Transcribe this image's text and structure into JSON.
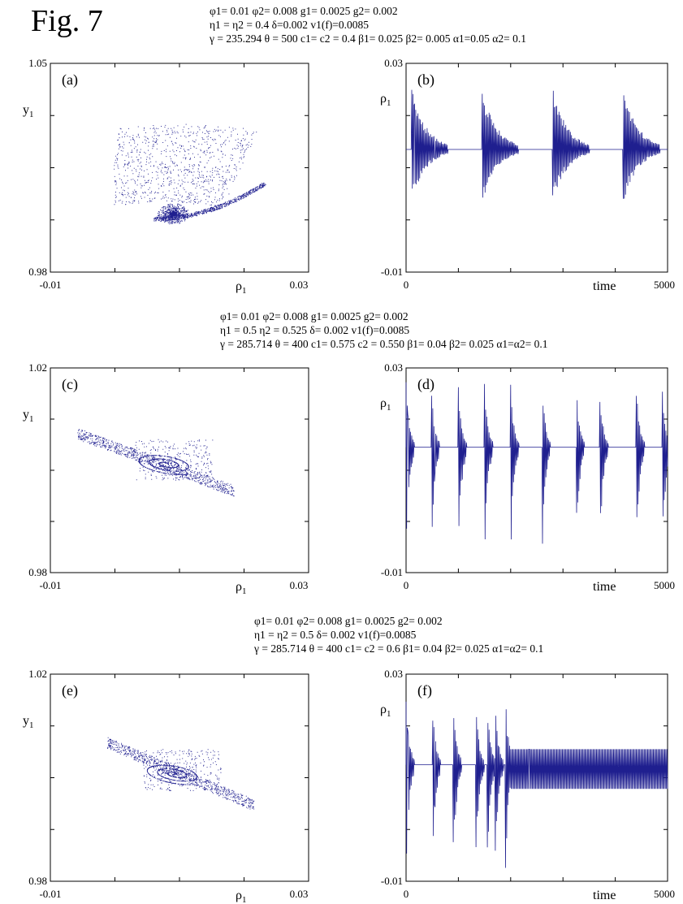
{
  "figure_label": "Fig. 7",
  "param_blocks": [
    [
      "φ1= 0.01   φ2= 0.008   g1= 0.0025   g2= 0.002",
      "η1 = η2 = 0.4   δ=0.002   v1(f)=0.0085",
      "γ = 235.294   θ = 500   c1= c2 = 0.4   β1= 0.025   β2= 0.005   α1=0.05  α2= 0.1"
    ],
    [
      "φ1= 0.01   φ2= 0.008   g1= 0.0025   g2= 0.002",
      "η1 = 0.5   η2 = 0.525   δ= 0.002   v1(f)=0.0085",
      "γ = 285.714   θ = 400   c1= 0.575   c2 = 0.550   β1= 0.04   β2= 0.025   α1=α2= 0.1"
    ],
    [
      "φ1= 0.01   φ2= 0.008   g1= 0.0025   g2= 0.002",
      "η1 = η2 = 0.5   δ= 0.002   v1(f)=0.0085",
      "γ = 285.714   θ = 400   c1= c2 = 0.6   β1= 0.04   β2= 0.025   α1=α2= 0.1"
    ]
  ],
  "colors": {
    "data": "#1f1f8f",
    "axis": "#000000"
  },
  "chart_data": [
    {
      "panel": "(a)",
      "type": "scatter",
      "xlabel": "ρ1",
      "ylabel": "y1",
      "xlim": [
        -0.01,
        0.03
      ],
      "ylim": [
        0.98,
        1.05
      ],
      "x_ticks": [
        "-0.01",
        "0.03"
      ],
      "y_ticks": [
        "0.98",
        "1.05"
      ],
      "attractor": {
        "shape": "bounded_region",
        "center": [
          0.009,
          0.9995
        ],
        "top": 1.03,
        "bottom": 0.997,
        "left": -0.0012,
        "right": 0.0233
      }
    },
    {
      "panel": "(b)",
      "type": "line",
      "xlabel": "time",
      "ylabel": "ρ1",
      "xlim": [
        0,
        5000
      ],
      "ylim": [
        -0.01,
        0.03
      ],
      "x_ticks": [
        "0",
        "5000"
      ],
      "y_ticks": [
        "-0.01",
        "0.03"
      ],
      "baseline": 0.0135,
      "bursts_start": [
        100,
        1450,
        2800,
        4150
      ],
      "burst_duration": 700,
      "peak_max": 0.0255,
      "trough_min": 0.003
    },
    {
      "panel": "(c)",
      "type": "scatter",
      "xlabel": "ρ1",
      "ylabel": "y1",
      "xlim": [
        -0.01,
        0.03
      ],
      "ylim": [
        0.98,
        1.02
      ],
      "x_ticks": [
        "-0.01",
        "0.03"
      ],
      "y_ticks": [
        "0.98",
        "1.02"
      ],
      "attractor": {
        "shape": "spiral_web",
        "center": [
          0.0079,
          1.0012
        ],
        "x_range": [
          -0.0058,
          0.0185
        ],
        "y_range": [
          0.9954,
          1.0086
        ]
      }
    },
    {
      "panel": "(d)",
      "type": "line",
      "xlabel": "time",
      "ylabel": "ρ1",
      "xlim": [
        0,
        5000
      ],
      "ylim": [
        -0.01,
        0.03
      ],
      "x_ticks": [
        "0",
        "5000"
      ],
      "y_ticks": [
        "-0.01",
        "0.03"
      ],
      "baseline": 0.0145,
      "bursts_start": [
        0,
        480,
        1000,
        1500,
        2000,
        2600,
        3250,
        3700,
        4400,
        4900
      ],
      "peak_max": 0.0275,
      "trough_min": -0.0072
    },
    {
      "panel": "(e)",
      "type": "scatter",
      "xlabel": "ρ1",
      "ylabel": "y1",
      "xlim": [
        -0.01,
        0.03
      ],
      "ylim": [
        0.98,
        1.02
      ],
      "x_ticks": [
        "-0.01",
        "0.03"
      ],
      "y_ticks": [
        "0.98",
        "1.02"
      ],
      "attractor": {
        "shape": "spiral_web",
        "center": [
          0.0092,
          1.0007
        ],
        "x_range": [
          -0.0012,
          0.0215
        ],
        "y_range": [
          0.9942,
          1.0082
        ]
      }
    },
    {
      "panel": "(f)",
      "type": "line",
      "xlabel": "time",
      "ylabel": "ρ1",
      "xlim": [
        0,
        5000
      ],
      "ylim": [
        -0.01,
        0.03
      ],
      "x_ticks": [
        "0",
        "5000"
      ],
      "y_ticks": [
        "-0.01",
        "0.03"
      ],
      "baseline": 0.0125,
      "bursts_start": [
        0,
        500,
        900,
        1330,
        1550,
        1700,
        1900
      ],
      "steady_oscillation_start": 2000,
      "steady_amplitude": 0.003,
      "peak_max": 0.026,
      "trough_min": -0.0085
    }
  ]
}
